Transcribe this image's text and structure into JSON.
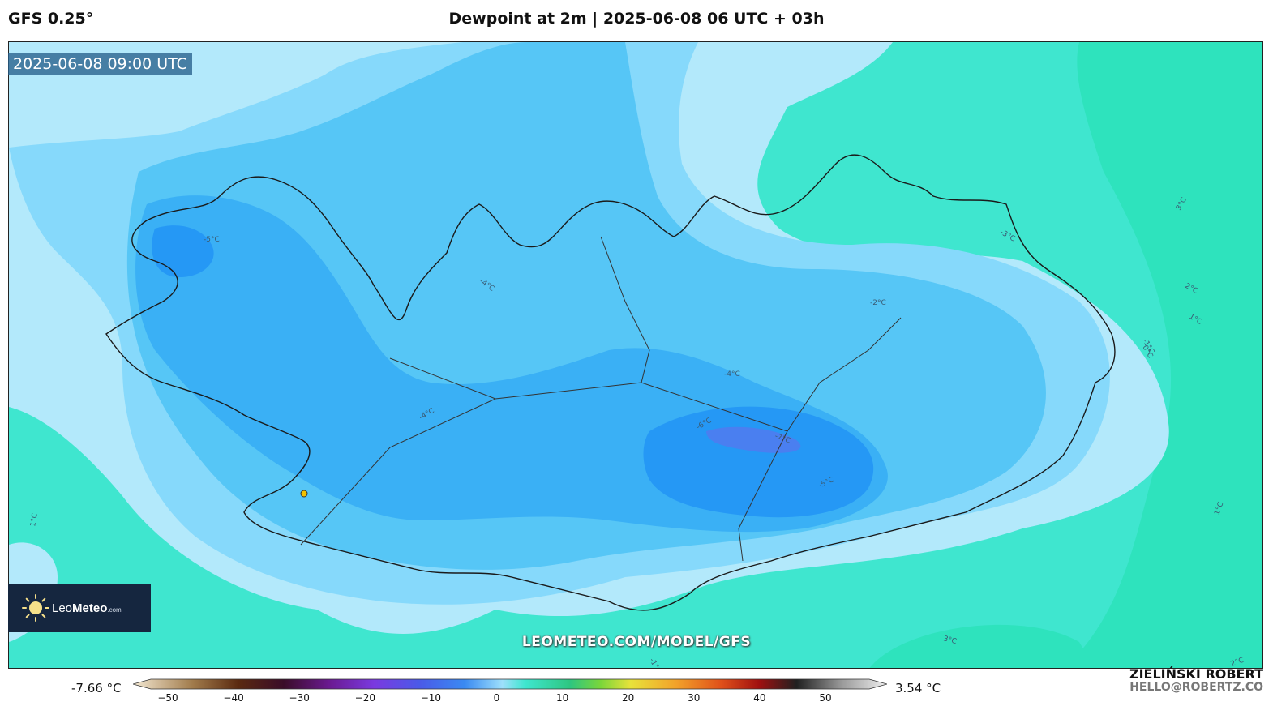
{
  "header": {
    "model": "GFS 0.25°",
    "title": "Dewpoint at 2m | 2025-06-08 06 UTC + 03h"
  },
  "map": {
    "valid_time": "2025-06-08 09:00 UTC",
    "region": "Iceland",
    "contour_labels": [
      "-5°C",
      "-4°C",
      "-4°C",
      "-4°C",
      "-6°C",
      "-7°C",
      "-5°C",
      "-2°C",
      "-3°C",
      "-1°C",
      "0°C",
      "1°C",
      "2°C",
      "3°C",
      "1°C",
      "1°C",
      "3°C",
      "2°C",
      "-1°C"
    ],
    "colors": {
      "ocean_far": "#2ee3bd",
      "ocean": "#3fe6cf",
      "light_blue": "#b3e9fb",
      "mid_blue": "#86d9fb",
      "blue": "#56c6f6",
      "deep_blue": "#3ab0f5",
      "deeper_blue": "#2598f5",
      "darkest_blue": "#4a7ff0"
    }
  },
  "logo": {
    "brand_light": "Leo",
    "brand_bold": "Meteo",
    "suffix": ".com"
  },
  "watermark": "LEOMETEO.COM/MODEL/GFS",
  "colorbar": {
    "min_label": "-7.66 °C",
    "max_label": "3.54 °C",
    "ticks": [
      "−50",
      "−40",
      "−30",
      "−20",
      "−10",
      "0",
      "10",
      "20",
      "30",
      "40",
      "50"
    ]
  },
  "author": {
    "name": "ZIELIŃSKI ROBERT",
    "email": "HELLO@ROBERTZ.CO"
  }
}
